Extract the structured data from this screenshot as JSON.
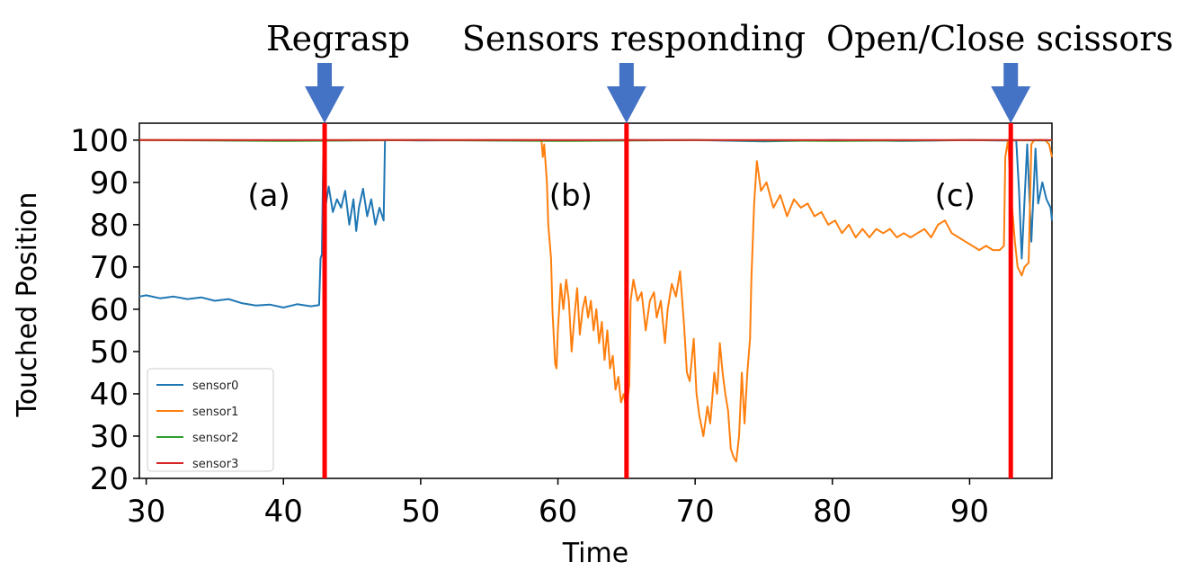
{
  "chart_data": {
    "type": "line",
    "xlabel": "Time",
    "ylabel": "Touched Position",
    "xlim": [
      29.5,
      96
    ],
    "ylim": [
      20,
      104
    ],
    "xticks": [
      30,
      40,
      50,
      60,
      70,
      80,
      90
    ],
    "yticks": [
      20,
      30,
      40,
      50,
      60,
      70,
      80,
      90,
      100
    ],
    "legend_position": "lower-left",
    "series": [
      {
        "name": "sensor0",
        "color": "#1f77b4",
        "points": [
          [
            29.5,
            63.0
          ],
          [
            30.0,
            63.3
          ],
          [
            31.0,
            62.6
          ],
          [
            32.0,
            63.0
          ],
          [
            33.0,
            62.4
          ],
          [
            34.0,
            62.8
          ],
          [
            35.0,
            62.0
          ],
          [
            36.0,
            62.4
          ],
          [
            37.0,
            61.4
          ],
          [
            38.0,
            60.9
          ],
          [
            39.0,
            61.1
          ],
          [
            40.0,
            60.4
          ],
          [
            41.0,
            61.2
          ],
          [
            42.0,
            60.7
          ],
          [
            42.6,
            61.0
          ],
          [
            42.7,
            72.0
          ],
          [
            42.8,
            73.0
          ],
          [
            42.9,
            96.0
          ],
          [
            43.1,
            85.0
          ],
          [
            43.3,
            89.0
          ],
          [
            43.6,
            83.0
          ],
          [
            43.9,
            86.0
          ],
          [
            44.2,
            84.0
          ],
          [
            44.5,
            88.0
          ],
          [
            44.8,
            80.0
          ],
          [
            45.1,
            86.0
          ],
          [
            45.3,
            78.5
          ],
          [
            45.5,
            84.0
          ],
          [
            45.8,
            88.5
          ],
          [
            46.1,
            82.0
          ],
          [
            46.4,
            86.0
          ],
          [
            46.7,
            80.0
          ],
          [
            47.0,
            84.0
          ],
          [
            47.3,
            81.0
          ],
          [
            47.4,
            100.0
          ],
          [
            50.0,
            99.9
          ],
          [
            55.0,
            100.0
          ],
          [
            60.0,
            99.9
          ],
          [
            65.0,
            100.0
          ],
          [
            70.0,
            100.0
          ],
          [
            75.0,
            99.7
          ],
          [
            80.0,
            100.0
          ],
          [
            85.0,
            99.8
          ],
          [
            90.0,
            100.0
          ],
          [
            92.0,
            99.9
          ],
          [
            93.4,
            99.9
          ],
          [
            93.6,
            88.0
          ],
          [
            93.8,
            72.0
          ],
          [
            94.2,
            99.0
          ],
          [
            94.5,
            76.0
          ],
          [
            94.8,
            98.0
          ],
          [
            95.0,
            85.0
          ],
          [
            95.3,
            90.0
          ],
          [
            95.6,
            86.0
          ],
          [
            95.9,
            84.0
          ],
          [
            96.0,
            81.0
          ]
        ]
      },
      {
        "name": "sensor1",
        "color": "#ff7f0e",
        "points": [
          [
            29.5,
            100.0
          ],
          [
            35.0,
            100.0
          ],
          [
            40.0,
            99.9
          ],
          [
            45.0,
            100.0
          ],
          [
            50.0,
            100.0
          ],
          [
            55.0,
            100.0
          ],
          [
            58.8,
            100.0
          ],
          [
            58.9,
            96.0
          ],
          [
            59.0,
            99.0
          ],
          [
            59.2,
            90.0
          ],
          [
            59.3,
            80.0
          ],
          [
            59.5,
            72.0
          ],
          [
            59.6,
            60.0
          ],
          [
            59.8,
            47.0
          ],
          [
            59.9,
            46.0
          ],
          [
            60.0,
            55.0
          ],
          [
            60.2,
            66.0
          ],
          [
            60.4,
            60.0
          ],
          [
            60.6,
            67.0
          ],
          [
            60.8,
            62.0
          ],
          [
            61.0,
            50.0
          ],
          [
            61.2,
            58.0
          ],
          [
            61.4,
            65.0
          ],
          [
            61.6,
            54.0
          ],
          [
            61.8,
            60.0
          ],
          [
            62.0,
            63.0
          ],
          [
            62.2,
            58.0
          ],
          [
            62.4,
            62.0
          ],
          [
            62.6,
            55.0
          ],
          [
            62.8,
            60.0
          ],
          [
            63.0,
            52.0
          ],
          [
            63.2,
            57.0
          ],
          [
            63.4,
            48.0
          ],
          [
            63.6,
            55.0
          ],
          [
            63.8,
            46.0
          ],
          [
            64.0,
            49.0
          ],
          [
            64.2,
            41.0
          ],
          [
            64.4,
            44.0
          ],
          [
            64.6,
            38.0
          ],
          [
            64.8,
            40.0
          ],
          [
            65.0,
            36.0
          ],
          [
            65.2,
            42.0
          ],
          [
            65.3,
            62.0
          ],
          [
            65.5,
            67.0
          ],
          [
            65.8,
            62.0
          ],
          [
            66.1,
            64.0
          ],
          [
            66.4,
            55.0
          ],
          [
            66.7,
            62.0
          ],
          [
            67.0,
            64.0
          ],
          [
            67.2,
            58.0
          ],
          [
            67.5,
            62.0
          ],
          [
            67.8,
            52.0
          ],
          [
            68.0,
            60.0
          ],
          [
            68.3,
            66.0
          ],
          [
            68.6,
            63.0
          ],
          [
            68.9,
            69.0
          ],
          [
            69.2,
            56.0
          ],
          [
            69.4,
            45.0
          ],
          [
            69.6,
            43.0
          ],
          [
            69.9,
            53.0
          ],
          [
            70.1,
            40.0
          ],
          [
            70.3,
            35.0
          ],
          [
            70.6,
            30.0
          ],
          [
            70.9,
            37.0
          ],
          [
            71.1,
            33.0
          ],
          [
            71.4,
            45.0
          ],
          [
            71.6,
            40.0
          ],
          [
            71.8,
            52.0
          ],
          [
            72.0,
            45.0
          ],
          [
            72.2,
            40.0
          ],
          [
            72.4,
            36.0
          ],
          [
            72.6,
            27.0
          ],
          [
            72.8,
            25.0
          ],
          [
            73.0,
            24.0
          ],
          [
            73.2,
            30.0
          ],
          [
            73.4,
            45.0
          ],
          [
            73.6,
            33.0
          ],
          [
            73.8,
            45.0
          ],
          [
            74.0,
            53.0
          ],
          [
            74.1,
            67.0
          ],
          [
            74.3,
            85.0
          ],
          [
            74.5,
            95.0
          ],
          [
            74.8,
            88.0
          ],
          [
            75.2,
            90.0
          ],
          [
            75.7,
            84.0
          ],
          [
            76.2,
            87.0
          ],
          [
            76.7,
            82.0
          ],
          [
            77.2,
            86.0
          ],
          [
            77.7,
            84.0
          ],
          [
            78.2,
            85.0
          ],
          [
            78.7,
            82.0
          ],
          [
            79.2,
            83.0
          ],
          [
            79.7,
            80.0
          ],
          [
            80.2,
            81.0
          ],
          [
            80.7,
            78.0
          ],
          [
            81.2,
            80.0
          ],
          [
            81.7,
            77.0
          ],
          [
            82.2,
            79.0
          ],
          [
            82.7,
            77.0
          ],
          [
            83.2,
            79.0
          ],
          [
            83.7,
            78.0
          ],
          [
            84.2,
            79.0
          ],
          [
            84.7,
            77.0
          ],
          [
            85.2,
            78.0
          ],
          [
            85.7,
            77.0
          ],
          [
            86.2,
            78.0
          ],
          [
            86.7,
            79.0
          ],
          [
            87.2,
            77.0
          ],
          [
            87.7,
            80.0
          ],
          [
            88.2,
            81.0
          ],
          [
            88.7,
            78.0
          ],
          [
            89.2,
            77.0
          ],
          [
            89.7,
            76.0
          ],
          [
            90.2,
            75.0
          ],
          [
            90.7,
            74.0
          ],
          [
            91.2,
            75.0
          ],
          [
            91.7,
            74.0
          ],
          [
            92.2,
            74.0
          ],
          [
            92.5,
            75.0
          ],
          [
            92.6,
            96.0
          ],
          [
            92.8,
            100.0
          ],
          [
            93.0,
            88.0
          ],
          [
            93.3,
            76.0
          ],
          [
            93.5,
            70.0
          ],
          [
            93.8,
            68.0
          ],
          [
            94.0,
            70.0
          ],
          [
            94.3,
            71.0
          ],
          [
            94.5,
            99.0
          ],
          [
            94.7,
            100.0
          ],
          [
            95.5,
            100.0
          ],
          [
            95.8,
            99.0
          ],
          [
            96.0,
            96.0
          ]
        ]
      },
      {
        "name": "sensor2",
        "color": "#2ca02c",
        "points": [
          [
            29.5,
            100.0
          ],
          [
            40.0,
            99.8
          ],
          [
            50.0,
            100.0
          ],
          [
            60.0,
            99.8
          ],
          [
            70.0,
            100.0
          ],
          [
            80.0,
            99.8
          ],
          [
            90.0,
            100.0
          ],
          [
            96.0,
            99.9
          ]
        ]
      },
      {
        "name": "sensor3",
        "color": "#d62728",
        "points": [
          [
            29.5,
            100.0
          ],
          [
            40.0,
            100.0
          ],
          [
            50.0,
            100.0
          ],
          [
            60.0,
            100.0
          ],
          [
            70.0,
            100.0
          ],
          [
            80.0,
            100.0
          ],
          [
            90.0,
            100.0
          ],
          [
            96.0,
            100.0
          ]
        ]
      }
    ],
    "event_lines": [
      {
        "x": 43.0,
        "color": "#ff0000",
        "top_label": "Regrasp",
        "panel_label": "(a)"
      },
      {
        "x": 65.0,
        "color": "#ff0000",
        "top_label": "Sensors responding",
        "panel_label": "(b)"
      },
      {
        "x": 93.0,
        "color": "#ff0000",
        "top_label": "Open/Close scissors",
        "panel_label": "(c)"
      }
    ],
    "arrow_color": "#4472c4"
  }
}
